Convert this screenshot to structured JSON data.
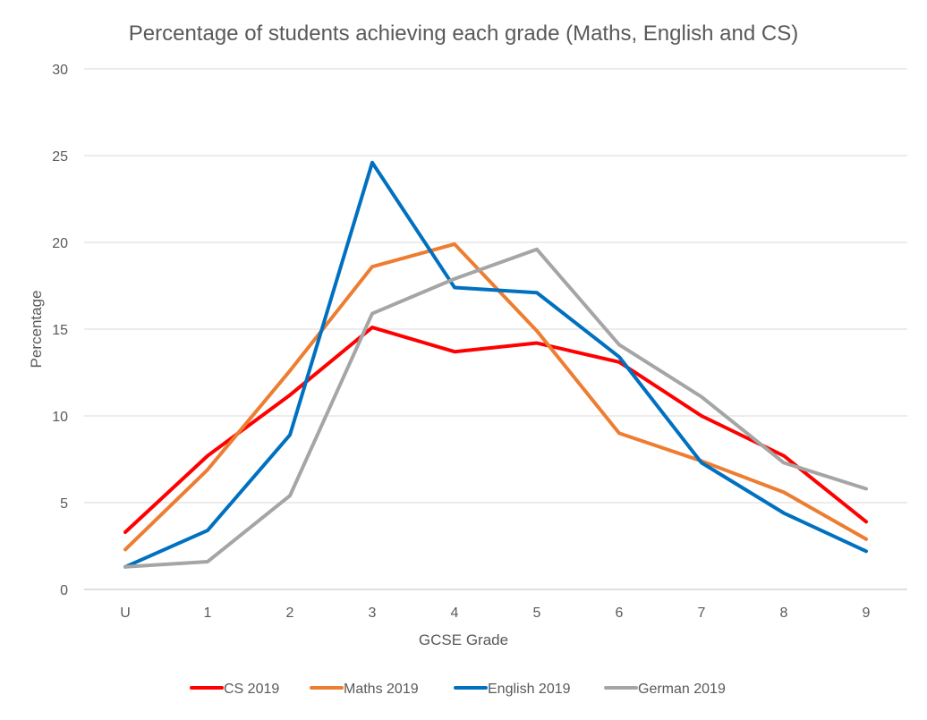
{
  "chart_data": {
    "type": "line",
    "title": "Percentage of students achieving each grade (Maths, English and CS)",
    "xlabel": "GCSE Grade",
    "ylabel": "Percentage",
    "categories": [
      "U",
      "1",
      "2",
      "3",
      "4",
      "5",
      "6",
      "7",
      "8",
      "9"
    ],
    "ylim": [
      0,
      30
    ],
    "yticks": [
      0,
      5,
      10,
      15,
      20,
      25,
      30
    ],
    "grid": true,
    "legend": "bottom",
    "series": [
      {
        "name": "CS 2019",
        "color": "#FF0000",
        "values": [
          3.3,
          7.7,
          11.2,
          15.1,
          13.7,
          14.2,
          13.1,
          10.0,
          7.7,
          3.9
        ]
      },
      {
        "name": "Maths 2019",
        "color": "#ED7D31",
        "values": [
          2.3,
          6.9,
          12.6,
          18.6,
          19.9,
          14.9,
          9.0,
          7.4,
          5.6,
          2.9
        ]
      },
      {
        "name": "English 2019",
        "color": "#0070C0",
        "values": [
          1.3,
          3.4,
          8.9,
          24.6,
          17.4,
          17.1,
          13.4,
          7.3,
          4.4,
          2.2
        ]
      },
      {
        "name": "German 2019",
        "color": "#A5A5A5",
        "values": [
          1.3,
          1.6,
          5.4,
          15.9,
          17.9,
          19.6,
          14.1,
          11.1,
          7.3,
          5.8
        ]
      }
    ]
  }
}
